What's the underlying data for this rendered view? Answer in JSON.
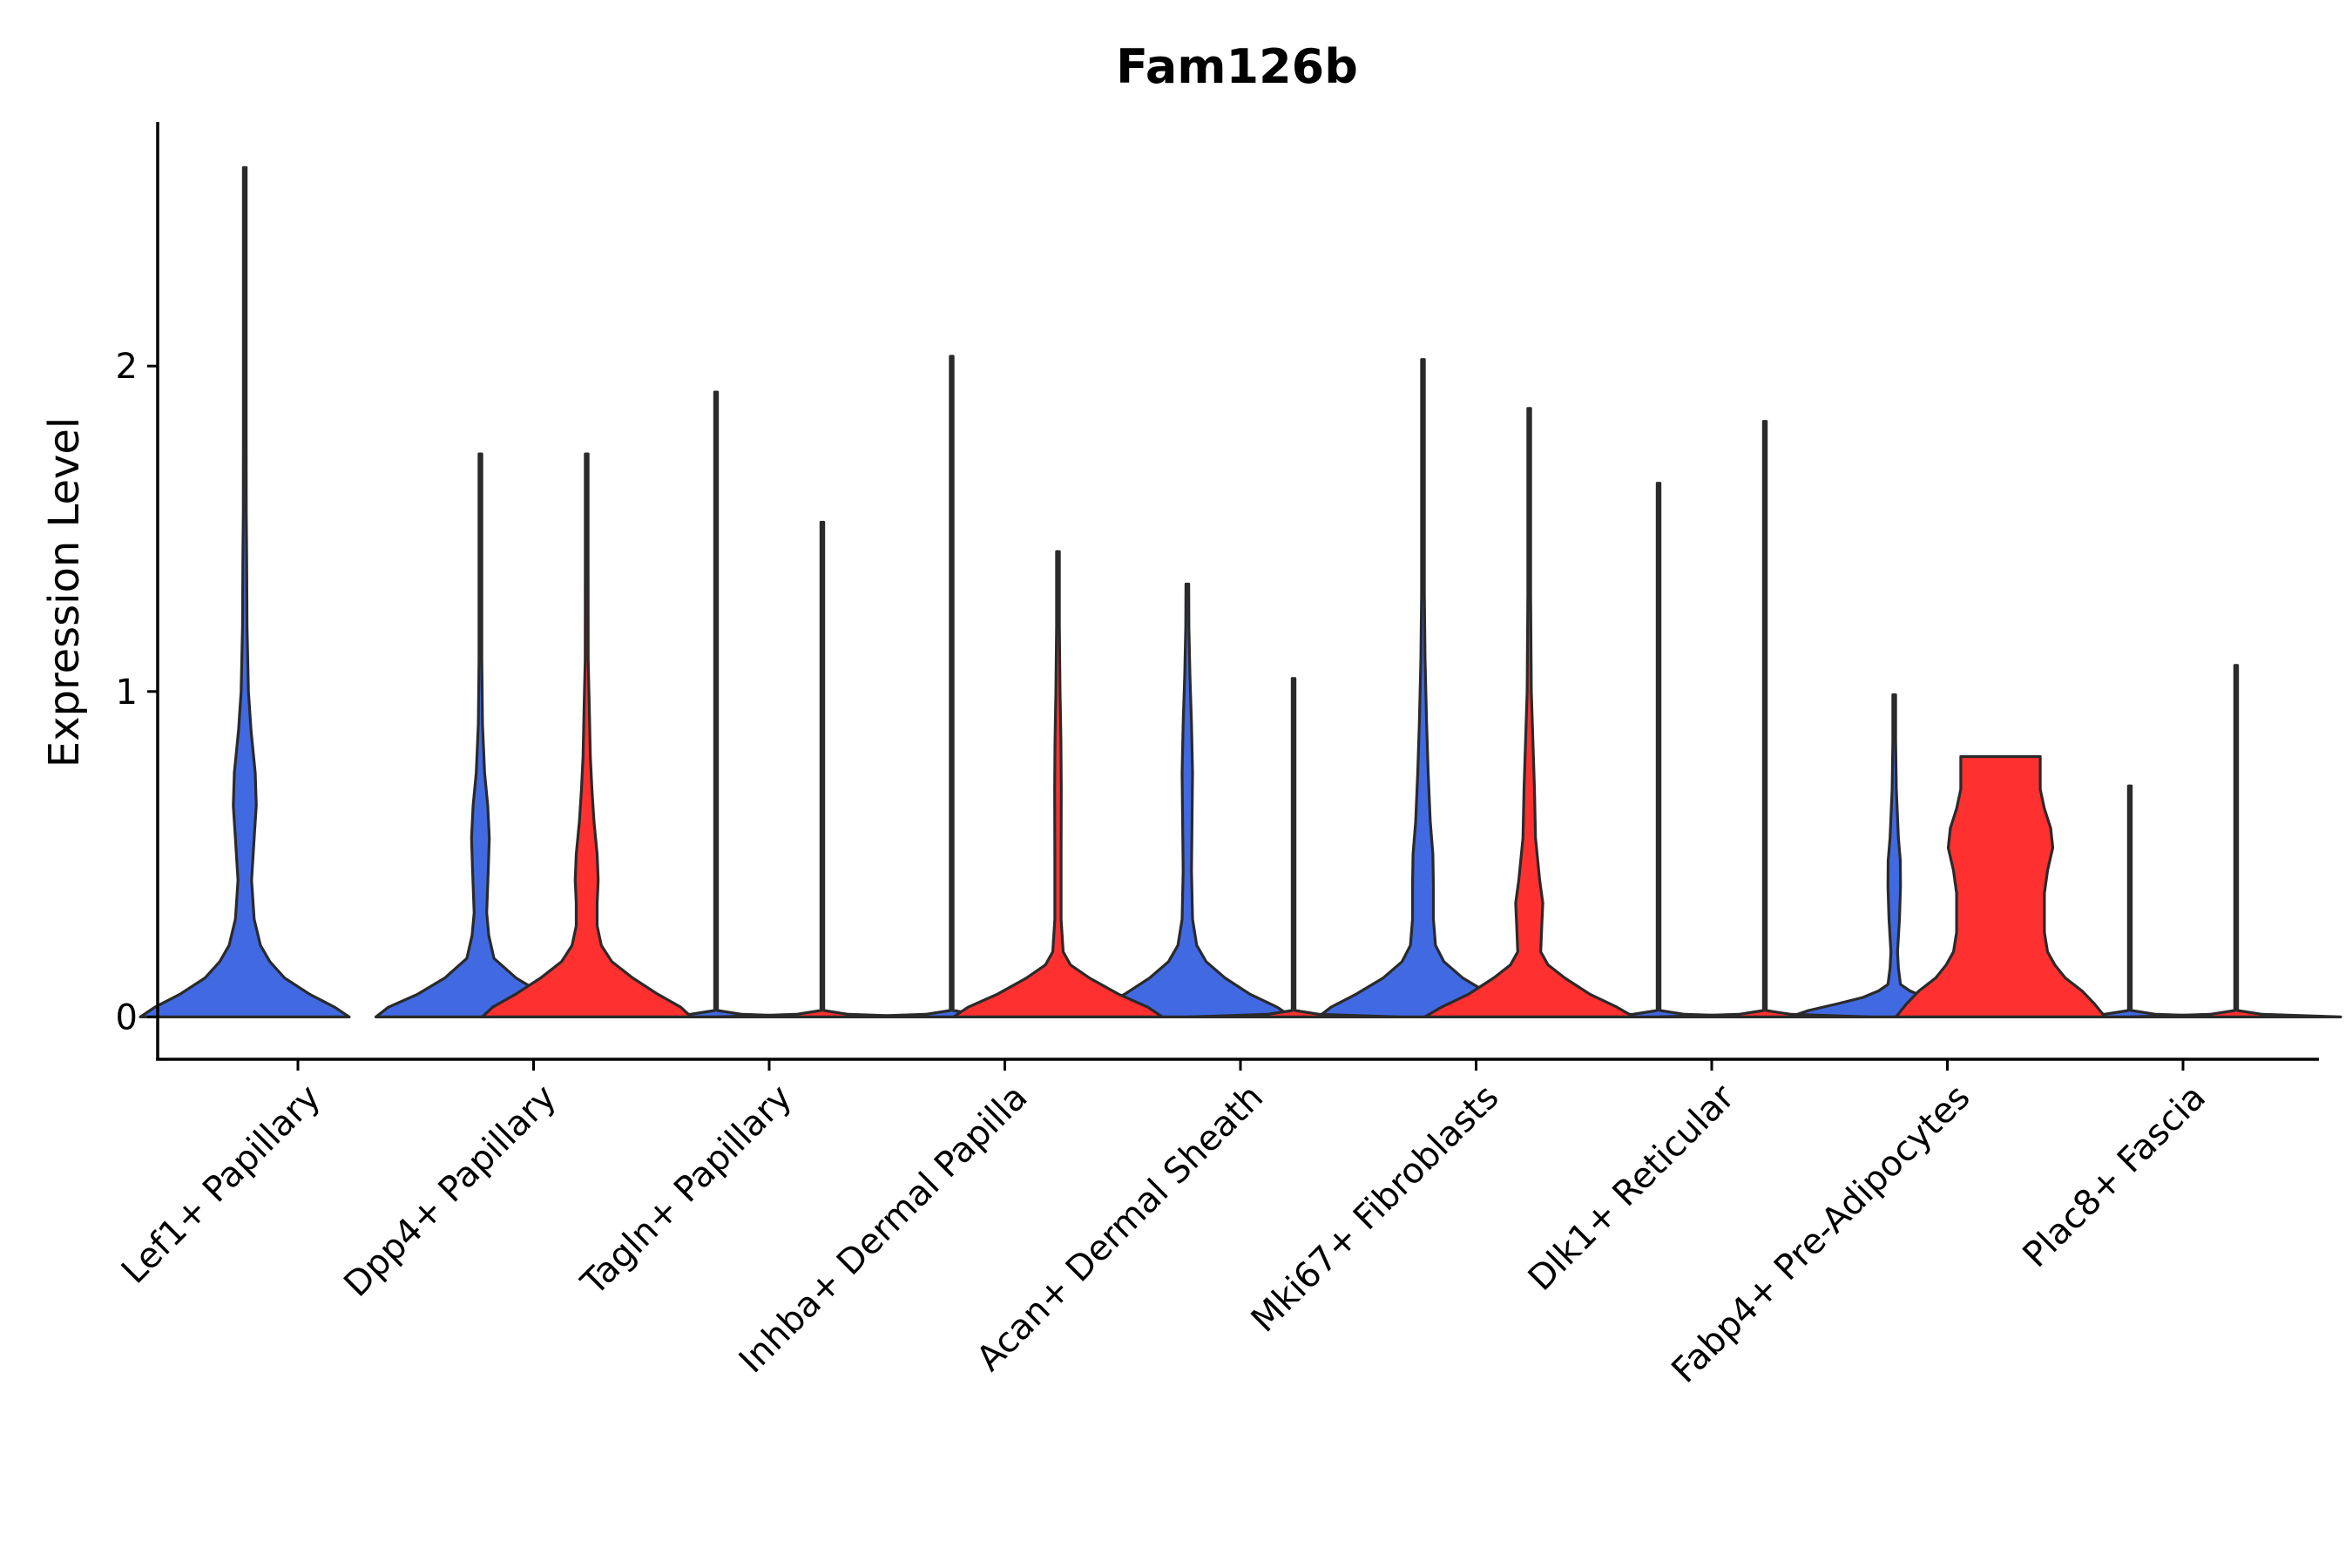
{
  "chart_data": {
    "type": "violin",
    "title": "Fam126b",
    "xlabel": "",
    "ylabel": "Expression Level",
    "ylim": [
      -0.13,
      2.75
    ],
    "yticks": [
      0,
      1,
      2
    ],
    "grid": false,
    "legend": "none",
    "colors": {
      "group_a": "#4169E1",
      "group_b": "#FF3030",
      "outline": "#2a2a2a"
    },
    "categories": [
      "Lef1+ Papillary",
      "Dpp4+ Papillary",
      "Tagln+ Papillary",
      "Inhba+ Dermal Papilla",
      "Acan+ Dermal Sheath",
      "Mki67+ Fibroblasts",
      "Dlk1+ Reticular",
      "Fabp4+ Pre-Adipocytes",
      "Plac8+ Fascia"
    ],
    "series": [
      {
        "name": "group_a",
        "color": "#4169E1",
        "violins": [
          {
            "category": "Lef1+ Papillary",
            "max": 2.61,
            "profile": [
              [
                0,
                1.0
              ],
              [
                0.03,
                0.86
              ],
              [
                0.07,
                0.62
              ],
              [
                0.12,
                0.38
              ],
              [
                0.17,
                0.24
              ],
              [
                0.22,
                0.15
              ],
              [
                0.3,
                0.09
              ],
              [
                0.42,
                0.065
              ],
              [
                0.55,
                0.09
              ],
              [
                0.65,
                0.11
              ],
              [
                0.75,
                0.1
              ],
              [
                0.88,
                0.06
              ],
              [
                1.0,
                0.035
              ],
              [
                1.2,
                0.022
              ],
              [
                1.4,
                0.018
              ],
              [
                1.55,
                0.014
              ],
              [
                1.8,
                0.01
              ],
              [
                2.0,
                0.008
              ],
              [
                2.3,
                0.006
              ],
              [
                2.61,
                0.006
              ]
            ]
          },
          {
            "category": "Dpp4+ Papillary",
            "max": 1.73,
            "profile": [
              [
                0,
                1.0
              ],
              [
                0.03,
                0.88
              ],
              [
                0.07,
                0.6
              ],
              [
                0.12,
                0.34
              ],
              [
                0.18,
                0.13
              ],
              [
                0.25,
                0.08
              ],
              [
                0.32,
                0.06
              ],
              [
                0.45,
                0.075
              ],
              [
                0.55,
                0.085
              ],
              [
                0.65,
                0.07
              ],
              [
                0.75,
                0.04
              ],
              [
                0.9,
                0.02
              ],
              [
                1.1,
                0.012
              ],
              [
                1.3,
                0.01
              ],
              [
                1.5,
                0.008
              ],
              [
                1.73,
                0.006
              ]
            ]
          },
          {
            "category": "Tagln+ Papillary",
            "max": 1.92,
            "profile": [
              [
                0,
                1.0
              ],
              [
                0.008,
                0.25
              ],
              [
                0.02,
                0.008
              ],
              [
                0.5,
                0.006
              ],
              [
                1.92,
                0.006
              ]
            ]
          },
          {
            "category": "Inhba+ Dermal Papilla",
            "max": 2.03,
            "profile": [
              [
                0,
                1.0
              ],
              [
                0.008,
                0.25
              ],
              [
                0.02,
                0.008
              ],
              [
                0.5,
                0.006
              ],
              [
                2.03,
                0.006
              ]
            ]
          },
          {
            "category": "Acan+ Dermal Sheath",
            "max": 1.33,
            "profile": [
              [
                0,
                1.0
              ],
              [
                0.03,
                0.86
              ],
              [
                0.07,
                0.6
              ],
              [
                0.12,
                0.36
              ],
              [
                0.17,
                0.18
              ],
              [
                0.22,
                0.09
              ],
              [
                0.3,
                0.05
              ],
              [
                0.45,
                0.04
              ],
              [
                0.6,
                0.045
              ],
              [
                0.75,
                0.05
              ],
              [
                0.9,
                0.04
              ],
              [
                1.05,
                0.025
              ],
              [
                1.2,
                0.015
              ],
              [
                1.33,
                0.008
              ]
            ]
          },
          {
            "category": "Mki67+ Fibroblasts",
            "max": 2.02,
            "profile": [
              [
                0,
                1.0
              ],
              [
                0.03,
                0.88
              ],
              [
                0.07,
                0.64
              ],
              [
                0.12,
                0.38
              ],
              [
                0.17,
                0.2
              ],
              [
                0.22,
                0.12
              ],
              [
                0.3,
                0.1
              ],
              [
                0.4,
                0.1
              ],
              [
                0.5,
                0.095
              ],
              [
                0.6,
                0.07
              ],
              [
                0.75,
                0.05
              ],
              [
                0.9,
                0.035
              ],
              [
                1.1,
                0.02
              ],
              [
                1.3,
                0.012
              ],
              [
                1.6,
                0.008
              ],
              [
                2.02,
                0.006
              ]
            ]
          },
          {
            "category": "Dlk1+ Reticular",
            "max": 1.64,
            "profile": [
              [
                0,
                1.0
              ],
              [
                0.008,
                0.25
              ],
              [
                0.02,
                0.008
              ],
              [
                0.5,
                0.006
              ],
              [
                1.64,
                0.006
              ]
            ]
          },
          {
            "category": "Fabp4+ Pre-Adipocytes",
            "max": 0.99,
            "profile": [
              [
                0,
                1.0
              ],
              [
                0.02,
                0.82
              ],
              [
                0.04,
                0.55
              ],
              [
                0.06,
                0.3
              ],
              [
                0.08,
                0.15
              ],
              [
                0.1,
                0.06
              ],
              [
                0.15,
                0.04
              ],
              [
                0.2,
                0.032
              ],
              [
                0.3,
                0.05
              ],
              [
                0.4,
                0.06
              ],
              [
                0.48,
                0.058
              ],
              [
                0.55,
                0.04
              ],
              [
                0.7,
                0.02
              ],
              [
                0.85,
                0.012
              ],
              [
                0.99,
                0.008
              ]
            ]
          },
          {
            "category": "Plac8+ Fascia",
            "max": 0.71,
            "profile": [
              [
                0,
                1.0
              ],
              [
                0.008,
                0.25
              ],
              [
                0.02,
                0.008
              ],
              [
                0.3,
                0.006
              ],
              [
                0.71,
                0.006
              ]
            ]
          }
        ]
      },
      {
        "name": "group_b",
        "color": "#FF3030",
        "violins": [
          {
            "category": "Dpp4+ Papillary",
            "max": 1.73,
            "profile": [
              [
                0,
                1.0
              ],
              [
                0.03,
                0.9
              ],
              [
                0.07,
                0.68
              ],
              [
                0.12,
                0.44
              ],
              [
                0.17,
                0.24
              ],
              [
                0.22,
                0.14
              ],
              [
                0.28,
                0.1
              ],
              [
                0.35,
                0.1
              ],
              [
                0.42,
                0.11
              ],
              [
                0.5,
                0.1
              ],
              [
                0.6,
                0.07
              ],
              [
                0.7,
                0.05
              ],
              [
                0.8,
                0.035
              ],
              [
                0.95,
                0.025
              ],
              [
                1.1,
                0.014
              ],
              [
                1.4,
                0.01
              ],
              [
                1.73,
                0.006
              ]
            ]
          },
          {
            "category": "Tagln+ Papillary",
            "max": 1.52,
            "profile": [
              [
                0,
                1.0
              ],
              [
                0.008,
                0.25
              ],
              [
                0.02,
                0.008
              ],
              [
                0.5,
                0.006
              ],
              [
                1.52,
                0.006
              ]
            ]
          },
          {
            "category": "Inhba+ Dermal Papilla",
            "max": 1.43,
            "profile": [
              [
                0,
                1.0
              ],
              [
                0.03,
                0.86
              ],
              [
                0.07,
                0.58
              ],
              [
                0.12,
                0.3
              ],
              [
                0.16,
                0.12
              ],
              [
                0.2,
                0.05
              ],
              [
                0.3,
                0.03
              ],
              [
                0.5,
                0.03
              ],
              [
                0.7,
                0.032
              ],
              [
                0.85,
                0.028
              ],
              [
                1.0,
                0.02
              ],
              [
                1.2,
                0.012
              ],
              [
                1.43,
                0.008
              ]
            ]
          },
          {
            "category": "Acan+ Dermal Sheath",
            "max": 1.04,
            "profile": [
              [
                0,
                1.0
              ],
              [
                0.008,
                0.25
              ],
              [
                0.02,
                0.008
              ],
              [
                0.5,
                0.006
              ],
              [
                1.04,
                0.006
              ]
            ]
          },
          {
            "category": "Mki67+ Fibroblasts",
            "max": 1.87,
            "profile": [
              [
                0,
                1.0
              ],
              [
                0.03,
                0.84
              ],
              [
                0.07,
                0.58
              ],
              [
                0.12,
                0.34
              ],
              [
                0.16,
                0.18
              ],
              [
                0.2,
                0.11
              ],
              [
                0.28,
                0.12
              ],
              [
                0.35,
                0.13
              ],
              [
                0.42,
                0.1
              ],
              [
                0.55,
                0.06
              ],
              [
                0.7,
                0.05
              ],
              [
                0.85,
                0.035
              ],
              [
                1.0,
                0.02
              ],
              [
                1.3,
                0.012
              ],
              [
                1.87,
                0.006
              ]
            ]
          },
          {
            "category": "Dlk1+ Reticular",
            "max": 1.83,
            "profile": [
              [
                0,
                1.0
              ],
              [
                0.008,
                0.25
              ],
              [
                0.02,
                0.008
              ],
              [
                0.5,
                0.006
              ],
              [
                1.83,
                0.006
              ]
            ]
          },
          {
            "category": "Fabp4+ Pre-Adipocytes",
            "max": 0.8,
            "profile": [
              [
                0,
                1.0
              ],
              [
                0.04,
                0.9
              ],
              [
                0.08,
                0.78
              ],
              [
                0.12,
                0.62
              ],
              [
                0.16,
                0.52
              ],
              [
                0.2,
                0.45
              ],
              [
                0.26,
                0.42
              ],
              [
                0.32,
                0.42
              ],
              [
                0.38,
                0.42
              ],
              [
                0.45,
                0.45
              ],
              [
                0.52,
                0.5
              ],
              [
                0.58,
                0.48
              ],
              [
                0.64,
                0.42
              ],
              [
                0.7,
                0.38
              ],
              [
                0.76,
                0.38
              ],
              [
                0.8,
                0.38
              ]
            ]
          },
          {
            "category": "Plac8+ Fascia",
            "max": 1.08,
            "profile": [
              [
                0,
                1.0
              ],
              [
                0.008,
                0.25
              ],
              [
                0.02,
                0.008
              ],
              [
                0.5,
                0.006
              ],
              [
                1.08,
                0.006
              ]
            ]
          }
        ]
      }
    ]
  }
}
